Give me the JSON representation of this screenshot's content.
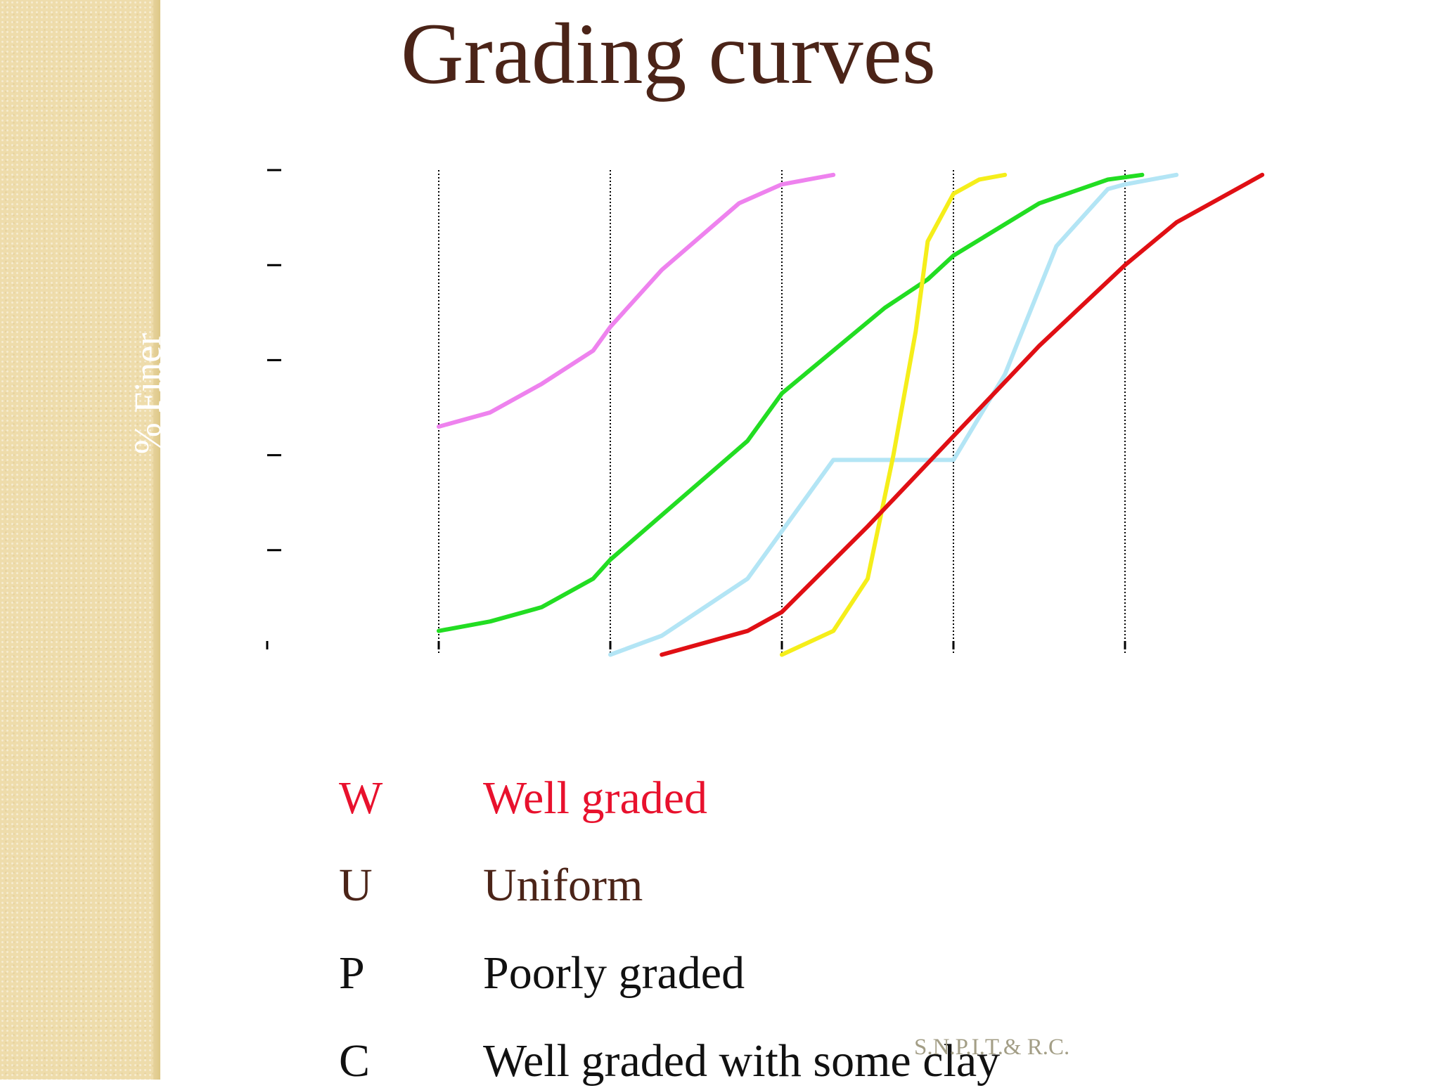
{
  "slide": {
    "title": "Grading curves",
    "footer": "S.N.P.I.T.& R.C."
  },
  "chart_data": {
    "type": "line",
    "title": "Grading curves",
    "xlabel": "",
    "ylabel": "% Finer",
    "xlim": [
      0,
      6
    ],
    "ylim": [
      0,
      100
    ],
    "x_ticks": [
      0,
      1,
      2,
      3,
      4,
      5
    ],
    "y_ticks": [
      0,
      20,
      40,
      60,
      80,
      100
    ],
    "vertical_gridlines": [
      1,
      2,
      3,
      4,
      5
    ],
    "grid_style": "dotted",
    "series": [
      {
        "color": "#ee82ee",
        "points": [
          [
            1.0,
            46
          ],
          [
            1.3,
            49
          ],
          [
            1.6,
            55
          ],
          [
            1.9,
            62
          ],
          [
            2.0,
            67
          ],
          [
            2.3,
            79
          ],
          [
            2.75,
            93
          ],
          [
            3.0,
            97
          ],
          [
            3.3,
            99
          ]
        ]
      },
      {
        "color": "#22dd22",
        "points": [
          [
            1.0,
            3
          ],
          [
            1.3,
            5
          ],
          [
            1.6,
            8
          ],
          [
            1.9,
            14
          ],
          [
            2.0,
            18
          ],
          [
            2.8,
            43
          ],
          [
            3.0,
            53
          ],
          [
            3.6,
            71
          ],
          [
            3.85,
            77
          ],
          [
            4.0,
            82
          ],
          [
            4.5,
            93
          ],
          [
            4.9,
            98
          ],
          [
            5.1,
            99
          ]
        ]
      },
      {
        "color": "#b3e5f5",
        "points": [
          [
            2.0,
            -2
          ],
          [
            2.3,
            2
          ],
          [
            2.8,
            14
          ],
          [
            3.0,
            24
          ],
          [
            3.3,
            39
          ],
          [
            4.0,
            39
          ],
          [
            4.3,
            57
          ],
          [
            4.6,
            84
          ],
          [
            4.9,
            96
          ],
          [
            5.0,
            97
          ],
          [
            5.3,
            99
          ]
        ]
      },
      {
        "color": "#f5ee1a",
        "points": [
          [
            3.0,
            -2
          ],
          [
            3.3,
            3
          ],
          [
            3.5,
            14
          ],
          [
            3.65,
            40
          ],
          [
            3.78,
            66
          ],
          [
            3.85,
            85
          ],
          [
            4.0,
            95
          ],
          [
            4.15,
            98
          ],
          [
            4.3,
            99
          ]
        ]
      },
      {
        "color": "#e00f14",
        "points": [
          [
            2.3,
            -2
          ],
          [
            2.8,
            3
          ],
          [
            3.0,
            7
          ],
          [
            3.5,
            25
          ],
          [
            4.0,
            44
          ],
          [
            4.5,
            63
          ],
          [
            5.0,
            80
          ],
          [
            5.3,
            89
          ],
          [
            5.8,
            99
          ]
        ]
      }
    ],
    "legend": [
      {
        "code": "W",
        "label": "Well graded",
        "color": "#e8112d"
      },
      {
        "code": "U",
        "label": "Uniform",
        "color": "#4b2418"
      },
      {
        "code": "P",
        "label": "Poorly graded",
        "color": "#111111"
      },
      {
        "code": "C",
        "label": "Well graded with some clay",
        "color": "#111111"
      }
    ]
  }
}
